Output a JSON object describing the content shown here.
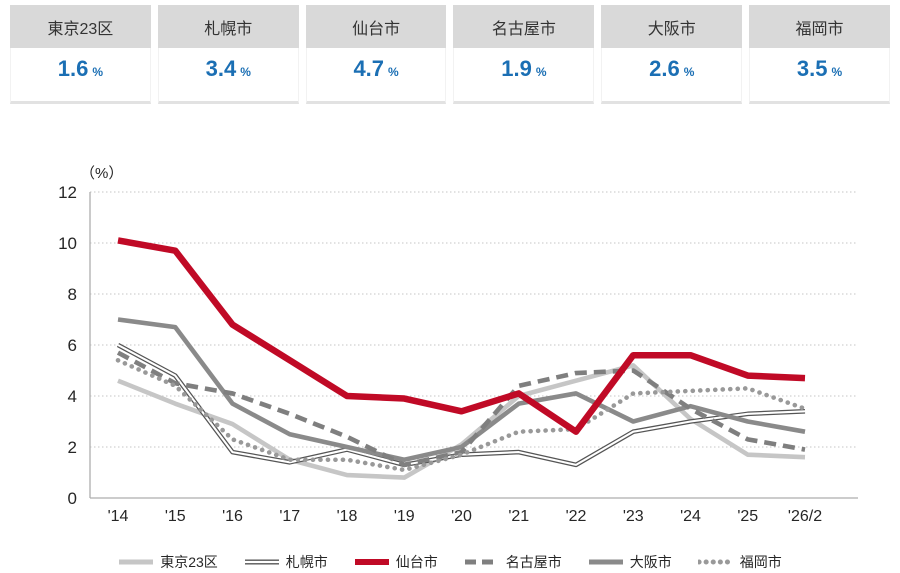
{
  "summary": {
    "items": [
      {
        "label": "東京23区",
        "value": "1.6",
        "unit": "%"
      },
      {
        "label": "札幌市",
        "value": "3.4",
        "unit": "%"
      },
      {
        "label": "仙台市",
        "value": "4.7",
        "unit": "%"
      },
      {
        "label": "名古屋市",
        "value": "1.9",
        "unit": "%"
      },
      {
        "label": "大阪市",
        "value": "2.6",
        "unit": "%"
      },
      {
        "label": "福岡市",
        "value": "3.5",
        "unit": "%"
      }
    ]
  },
  "chart_data": {
    "type": "line",
    "title": "",
    "y_axis_unit_label": "（%）",
    "ylim": [
      0,
      12
    ],
    "y_ticks": [
      0,
      2,
      4,
      6,
      8,
      10,
      12
    ],
    "grid": true,
    "legend_position": "bottom",
    "categories": [
      "'14",
      "'15",
      "'16",
      "'17",
      "'18",
      "'19",
      "'20",
      "'21",
      "'22",
      "'23",
      "'24",
      "'25",
      "'26/2"
    ],
    "series": [
      {
        "key": "tokyo23",
        "name": "東京23区",
        "style": "solid",
        "color": "#c6c6c6",
        "width": 4.6,
        "values": [
          4.6,
          3.7,
          2.9,
          1.5,
          0.9,
          0.8,
          2.1,
          4.0,
          4.6,
          5.2,
          3.1,
          1.7,
          1.6
        ]
      },
      {
        "key": "sapporo",
        "name": "札幌市",
        "style": "double",
        "color": "#555555",
        "width": 4.6,
        "values": [
          6.0,
          4.8,
          1.8,
          1.4,
          1.9,
          1.3,
          1.7,
          1.8,
          1.3,
          2.6,
          3.0,
          3.3,
          3.4
        ]
      },
      {
        "key": "sendai",
        "name": "仙台市",
        "style": "solid",
        "color": "#c00a26",
        "width": 6.5,
        "values": [
          10.1,
          9.7,
          6.8,
          5.4,
          4.0,
          3.9,
          3.4,
          4.1,
          2.6,
          5.6,
          5.6,
          4.8,
          4.7
        ]
      },
      {
        "key": "nagoya",
        "name": "名古屋市",
        "style": "dashed",
        "color": "#7f7f7f",
        "width": 4.6,
        "values": [
          5.7,
          4.5,
          4.1,
          3.3,
          2.4,
          1.3,
          1.8,
          4.4,
          4.9,
          5.0,
          3.5,
          2.3,
          1.9
        ]
      },
      {
        "key": "osaka",
        "name": "大阪市",
        "style": "solid",
        "color": "#8a8a8a",
        "width": 4.6,
        "values": [
          7.0,
          6.7,
          3.7,
          2.5,
          2.0,
          1.5,
          2.0,
          3.7,
          4.1,
          3.0,
          3.6,
          3.0,
          2.6
        ]
      },
      {
        "key": "fukuoka",
        "name": "福岡市",
        "style": "dotted",
        "color": "#999999",
        "width": 4.6,
        "values": [
          5.4,
          4.4,
          2.3,
          1.5,
          1.5,
          1.1,
          1.7,
          2.6,
          2.7,
          4.1,
          4.2,
          4.3,
          3.5
        ]
      }
    ]
  },
  "colors": {
    "accent_red": "#c00a26",
    "value_blue": "#1b6fb4",
    "header_gray": "#d9d9d9",
    "grid_gray": "#c6c6c6",
    "axis_gray": "#adadad"
  }
}
